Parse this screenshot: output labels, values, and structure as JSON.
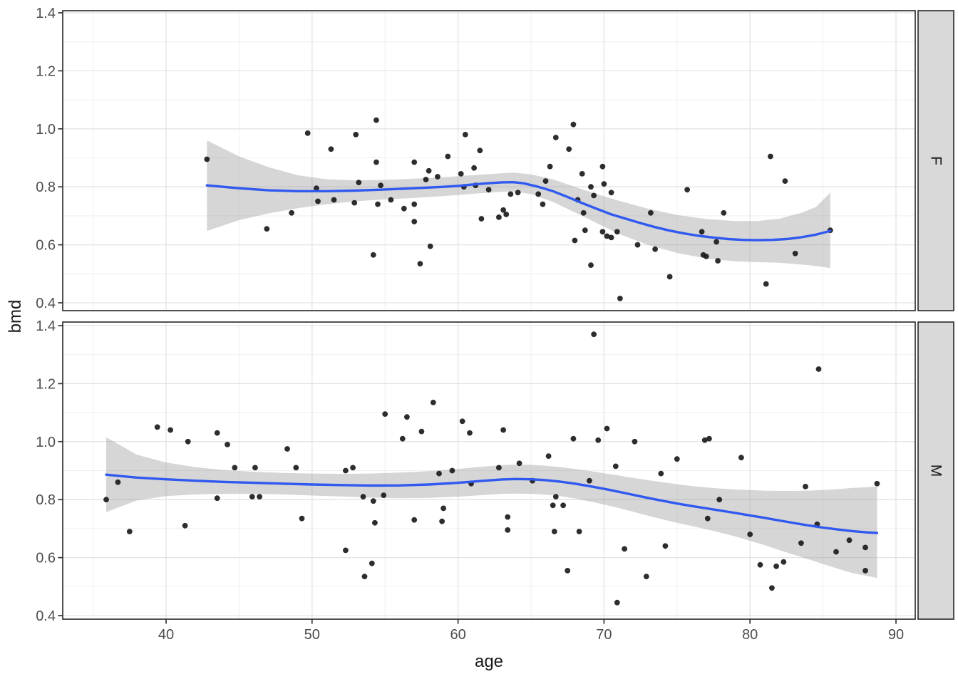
{
  "figure": {
    "x_axis_title": "age",
    "y_axis_title": "bmd",
    "x_ticks": {
      "values": [
        40,
        50,
        60,
        70,
        80,
        90
      ],
      "labels": [
        "40",
        "50",
        "60",
        "70",
        "80",
        "90"
      ]
    },
    "y_ticks": {
      "values": [
        1.4,
        1.2,
        1.0,
        0.8,
        0.6,
        0.4
      ],
      "labels": [
        "1.4",
        "1.2",
        "1.0",
        "0.8",
        "0.6",
        "0.4"
      ]
    },
    "x_minor": [
      35,
      45,
      55,
      65,
      75,
      85
    ],
    "y_minor": [
      1.3,
      1.1,
      0.9,
      0.7,
      0.5
    ]
  },
  "style": {
    "background": "#ffffff",
    "panel_background": "#ffffff",
    "panel_border": "#333333",
    "grid_major": "#e3e3e3",
    "grid_minor": "#efefef",
    "tick_color": "#333333",
    "tick_label_color": "#4d4d4d",
    "point_color": "#1b1b1b",
    "smooth_line_color": "#3059ef",
    "band_color": "#999999",
    "band_opacity": 0.4,
    "strip_fill": "#d9d9d9",
    "strip_text_color": "#1a1a1a"
  },
  "chart_data": {
    "type": "scatter",
    "title": "",
    "xlabel": "age",
    "ylabel": "bmd",
    "xlim": [
      32.9,
      91.3
    ],
    "ylim": [
      0.37,
      1.41
    ],
    "grid": true,
    "legend": "none",
    "facet_variable_values": [
      "F",
      "M"
    ],
    "facets": [
      {
        "label": "F",
        "points": [
          [
            42.8,
            0.895
          ],
          [
            46.9,
            0.655
          ],
          [
            48.6,
            0.71
          ],
          [
            49.7,
            0.985
          ],
          [
            50.3,
            0.795
          ],
          [
            50.4,
            0.75
          ],
          [
            51.3,
            0.93
          ],
          [
            51.5,
            0.755
          ],
          [
            52.9,
            0.745
          ],
          [
            53.0,
            0.98
          ],
          [
            53.2,
            0.815
          ],
          [
            54.2,
            0.565
          ],
          [
            54.4,
            1.03
          ],
          [
            54.4,
            0.885
          ],
          [
            54.5,
            0.74
          ],
          [
            54.7,
            0.805
          ],
          [
            55.4,
            0.755
          ],
          [
            56.3,
            0.725
          ],
          [
            57.0,
            0.885
          ],
          [
            57.0,
            0.74
          ],
          [
            57.0,
            0.68
          ],
          [
            57.4,
            0.535
          ],
          [
            57.8,
            0.825
          ],
          [
            58.0,
            0.855
          ],
          [
            58.1,
            0.595
          ],
          [
            58.6,
            0.835
          ],
          [
            59.3,
            0.905
          ],
          [
            60.2,
            0.845
          ],
          [
            60.4,
            0.8
          ],
          [
            60.5,
            0.98
          ],
          [
            61.1,
            0.865
          ],
          [
            61.2,
            0.805
          ],
          [
            61.5,
            0.925
          ],
          [
            61.6,
            0.69
          ],
          [
            62.1,
            0.79
          ],
          [
            62.8,
            0.695
          ],
          [
            63.1,
            0.72
          ],
          [
            63.3,
            0.705
          ],
          [
            63.6,
            0.775
          ],
          [
            64.1,
            0.78
          ],
          [
            65.5,
            0.775
          ],
          [
            65.8,
            0.74
          ],
          [
            66.0,
            0.82
          ],
          [
            66.3,
            0.87
          ],
          [
            66.7,
            0.97
          ],
          [
            67.6,
            0.93
          ],
          [
            67.9,
            1.015
          ],
          [
            68.0,
            0.615
          ],
          [
            68.2,
            0.755
          ],
          [
            68.5,
            0.845
          ],
          [
            68.6,
            0.71
          ],
          [
            68.7,
            0.65
          ],
          [
            69.1,
            0.8
          ],
          [
            69.1,
            0.53
          ],
          [
            69.3,
            0.77
          ],
          [
            69.9,
            0.87
          ],
          [
            69.9,
            0.645
          ],
          [
            70.0,
            0.81
          ],
          [
            70.2,
            0.63
          ],
          [
            70.5,
            0.78
          ],
          [
            70.5,
            0.625
          ],
          [
            70.9,
            0.645
          ],
          [
            71.1,
            0.415
          ],
          [
            72.3,
            0.6
          ],
          [
            73.2,
            0.71
          ],
          [
            73.5,
            0.585
          ],
          [
            74.5,
            0.49
          ],
          [
            75.7,
            0.79
          ],
          [
            76.7,
            0.645
          ],
          [
            76.8,
            0.565
          ],
          [
            77.0,
            0.56
          ],
          [
            77.7,
            0.61
          ],
          [
            77.8,
            0.545
          ],
          [
            78.2,
            0.71
          ],
          [
            81.1,
            0.465
          ],
          [
            81.4,
            0.905
          ],
          [
            82.4,
            0.82
          ],
          [
            83.1,
            0.57
          ],
          [
            85.5,
            0.65
          ]
        ],
        "smooth_x": [
          42.8,
          45,
          47,
          49,
          51,
          53,
          55,
          57,
          59,
          60,
          61,
          62,
          63,
          63.8,
          64.5,
          65.5,
          66.5,
          67.5,
          68.5,
          69.5,
          70.5,
          71.5,
          72.5,
          73.5,
          74.5,
          75.5,
          76.5,
          77.5,
          78.5,
          79.5,
          80.5,
          81.5,
          82.5,
          83.5,
          84.5,
          85.5
        ],
        "smooth_y": [
          0.805,
          0.795,
          0.788,
          0.785,
          0.785,
          0.787,
          0.791,
          0.795,
          0.8,
          0.803,
          0.808,
          0.812,
          0.8155,
          0.816,
          0.812,
          0.8,
          0.785,
          0.765,
          0.744,
          0.724,
          0.705,
          0.69,
          0.675,
          0.661,
          0.649,
          0.639,
          0.631,
          0.625,
          0.62,
          0.617,
          0.616,
          0.617,
          0.62,
          0.626,
          0.635,
          0.648
        ],
        "band_x": [
          42.8,
          45,
          47,
          49,
          51,
          53,
          55,
          57,
          59,
          61,
          63,
          63.8,
          65,
          66.5,
          68,
          69.5,
          71,
          73,
          75,
          77,
          79,
          80.5,
          82,
          83.5,
          84.5,
          85.5
        ],
        "band_upper": [
          0.96,
          0.905,
          0.868,
          0.84,
          0.826,
          0.822,
          0.824,
          0.828,
          0.833,
          0.84,
          0.847,
          0.849,
          0.843,
          0.826,
          0.8,
          0.775,
          0.752,
          0.725,
          0.703,
          0.689,
          0.682,
          0.682,
          0.69,
          0.71,
          0.73,
          0.78
        ],
        "band_lower": [
          0.648,
          0.685,
          0.708,
          0.726,
          0.74,
          0.75,
          0.757,
          0.762,
          0.768,
          0.776,
          0.783,
          0.784,
          0.775,
          0.748,
          0.712,
          0.675,
          0.638,
          0.6,
          0.572,
          0.553,
          0.543,
          0.54,
          0.538,
          0.532,
          0.527,
          0.52
        ]
      },
      {
        "label": "M",
        "points": [
          [
            35.9,
            0.8
          ],
          [
            36.7,
            0.86
          ],
          [
            37.5,
            0.69
          ],
          [
            39.4,
            1.05
          ],
          [
            40.3,
            1.04
          ],
          [
            41.3,
            0.71
          ],
          [
            41.5,
            1.0
          ],
          [
            43.5,
            1.03
          ],
          [
            43.5,
            0.805
          ],
          [
            44.2,
            0.99
          ],
          [
            44.7,
            0.91
          ],
          [
            45.9,
            0.81
          ],
          [
            46.1,
            0.91
          ],
          [
            46.4,
            0.81
          ],
          [
            48.3,
            0.975
          ],
          [
            48.9,
            0.91
          ],
          [
            49.3,
            0.735
          ],
          [
            52.3,
            0.9
          ],
          [
            52.3,
            0.625
          ],
          [
            52.8,
            0.91
          ],
          [
            53.5,
            0.81
          ],
          [
            53.6,
            0.535
          ],
          [
            54.1,
            0.58
          ],
          [
            54.2,
            0.795
          ],
          [
            54.3,
            0.72
          ],
          [
            54.9,
            0.815
          ],
          [
            55.0,
            1.095
          ],
          [
            56.2,
            1.01
          ],
          [
            56.5,
            1.085
          ],
          [
            57.0,
            0.73
          ],
          [
            57.5,
            1.035
          ],
          [
            58.3,
            1.135
          ],
          [
            58.7,
            0.89
          ],
          [
            58.9,
            0.725
          ],
          [
            59.0,
            0.77
          ],
          [
            59.6,
            0.9
          ],
          [
            60.3,
            1.07
          ],
          [
            60.8,
            1.03
          ],
          [
            60.9,
            0.855
          ],
          [
            62.8,
            0.91
          ],
          [
            63.1,
            1.04
          ],
          [
            63.4,
            0.74
          ],
          [
            63.4,
            0.695
          ],
          [
            64.2,
            0.925
          ],
          [
            65.1,
            0.865
          ],
          [
            66.2,
            0.95
          ],
          [
            66.5,
            0.78
          ],
          [
            66.6,
            0.69
          ],
          [
            66.7,
            0.81
          ],
          [
            67.2,
            0.78
          ],
          [
            67.5,
            0.555
          ],
          [
            67.9,
            1.01
          ],
          [
            68.3,
            0.69
          ],
          [
            69.0,
            0.865
          ],
          [
            69.3,
            1.37
          ],
          [
            69.6,
            1.005
          ],
          [
            70.2,
            1.045
          ],
          [
            70.8,
            0.915
          ],
          [
            70.9,
            0.445
          ],
          [
            71.4,
            0.63
          ],
          [
            72.1,
            1.0
          ],
          [
            72.9,
            0.535
          ],
          [
            73.9,
            0.89
          ],
          [
            74.2,
            0.64
          ],
          [
            75.0,
            0.94
          ],
          [
            76.9,
            1.005
          ],
          [
            77.1,
            0.735
          ],
          [
            77.2,
            1.01
          ],
          [
            77.9,
            0.8
          ],
          [
            79.4,
            0.945
          ],
          [
            80.0,
            0.68
          ],
          [
            80.7,
            0.575
          ],
          [
            81.5,
            0.495
          ],
          [
            81.8,
            0.57
          ],
          [
            82.3,
            0.585
          ],
          [
            83.5,
            0.65
          ],
          [
            83.8,
            0.845
          ],
          [
            84.6,
            0.715
          ],
          [
            84.7,
            1.25
          ],
          [
            85.9,
            0.62
          ],
          [
            86.8,
            0.66
          ],
          [
            87.9,
            0.635
          ],
          [
            87.9,
            0.555
          ],
          [
            88.7,
            0.855
          ]
        ],
        "smooth_x": [
          35.9,
          38,
          40,
          42,
          44,
          46,
          48,
          50,
          52,
          54,
          56,
          58,
          60,
          61.5,
          63,
          64,
          65,
          66,
          67,
          68,
          69,
          70,
          71,
          72,
          73,
          74,
          75,
          76,
          77,
          78,
          79,
          80,
          81,
          82,
          83,
          84,
          85,
          86,
          87,
          88,
          88.7
        ],
        "smooth_y": [
          0.886,
          0.876,
          0.87,
          0.865,
          0.861,
          0.858,
          0.855,
          0.852,
          0.85,
          0.8485,
          0.849,
          0.852,
          0.858,
          0.864,
          0.8695,
          0.871,
          0.87,
          0.867,
          0.862,
          0.855,
          0.8465,
          0.837,
          0.827,
          0.8165,
          0.806,
          0.796,
          0.7865,
          0.778,
          0.77,
          0.762,
          0.754,
          0.7455,
          0.737,
          0.728,
          0.7195,
          0.711,
          0.7035,
          0.697,
          0.6915,
          0.687,
          0.685
        ],
        "band_x": [
          35.9,
          38,
          40,
          42,
          44,
          46,
          48,
          50,
          52,
          54,
          56,
          58,
          60,
          61.5,
          63,
          64,
          65,
          66,
          67,
          68,
          69,
          70,
          71,
          72,
          73,
          74,
          75,
          76,
          77,
          78,
          79,
          80,
          81,
          82,
          83,
          84,
          85,
          86,
          87,
          88,
          88.7
        ],
        "band_upper": [
          1.015,
          0.955,
          0.928,
          0.912,
          0.902,
          0.896,
          0.892,
          0.89,
          0.889,
          0.89,
          0.893,
          0.898,
          0.906,
          0.913,
          0.919,
          0.921,
          0.92,
          0.917,
          0.912,
          0.906,
          0.899,
          0.891,
          0.883,
          0.875,
          0.867,
          0.86,
          0.853,
          0.847,
          0.842,
          0.838,
          0.835,
          0.833,
          0.831,
          0.83,
          0.83,
          0.831,
          0.833,
          0.836,
          0.84,
          0.843,
          0.845
        ],
        "band_lower": [
          0.757,
          0.797,
          0.812,
          0.818,
          0.82,
          0.82,
          0.818,
          0.814,
          0.811,
          0.807,
          0.805,
          0.806,
          0.81,
          0.815,
          0.82,
          0.821,
          0.82,
          0.817,
          0.812,
          0.804,
          0.794,
          0.783,
          0.771,
          0.758,
          0.745,
          0.732,
          0.72,
          0.709,
          0.698,
          0.686,
          0.673,
          0.658,
          0.643,
          0.626,
          0.61,
          0.594,
          0.578,
          0.562,
          0.547,
          0.537,
          0.53
        ]
      }
    ]
  }
}
